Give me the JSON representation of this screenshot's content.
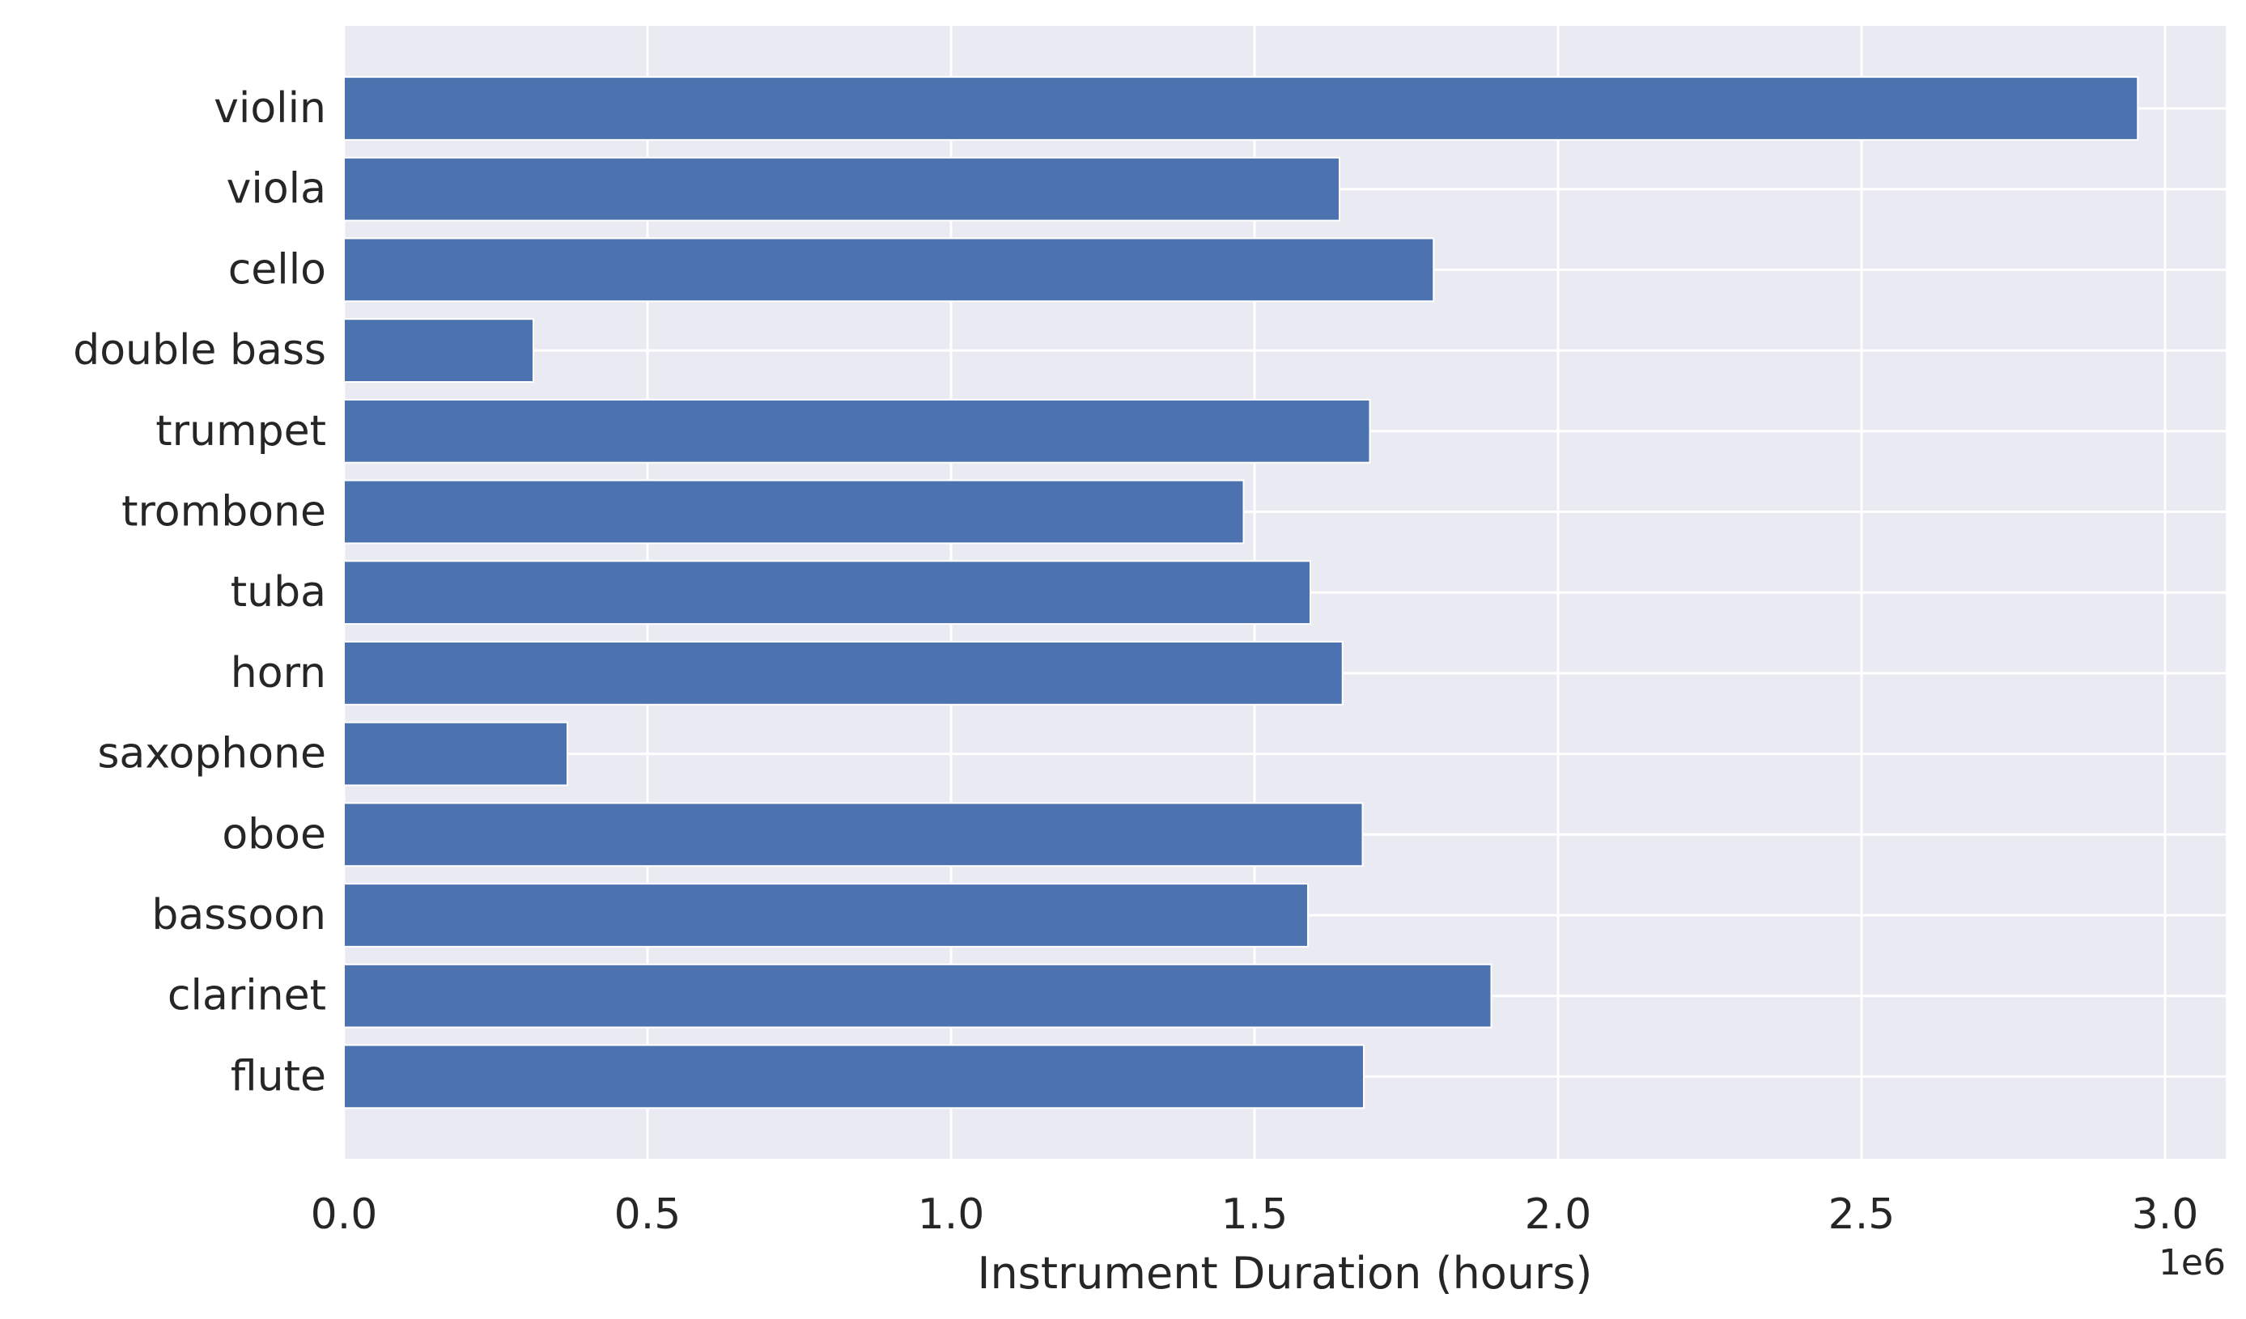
{
  "chart_data": {
    "type": "bar",
    "orientation": "horizontal",
    "categories": [
      "violin",
      "viola",
      "cello",
      "double bass",
      "trumpet",
      "trombone",
      "tuba",
      "horn",
      "saxophone",
      "oboe",
      "bassoon",
      "clarinet",
      "flute"
    ],
    "values": [
      2955000,
      1640000,
      1795000,
      312000,
      1690000,
      1482000,
      1592000,
      1645000,
      368000,
      1678000,
      1588000,
      1890000,
      1680000
    ],
    "title": "",
    "xlabel": "Instrument Duration (hours)",
    "ylabel": "",
    "xlim": [
      0,
      3100000
    ],
    "x_ticks": [
      0,
      500000,
      1000000,
      1500000,
      2000000,
      2500000,
      3000000
    ],
    "x_tick_labels": [
      "0.0",
      "0.5",
      "1.0",
      "1.5",
      "2.0",
      "2.5",
      "3.0"
    ],
    "x_offset_label": "1e6",
    "grid": true,
    "bar_color": "#4c72b0",
    "background_color": "#eaeaf2"
  }
}
